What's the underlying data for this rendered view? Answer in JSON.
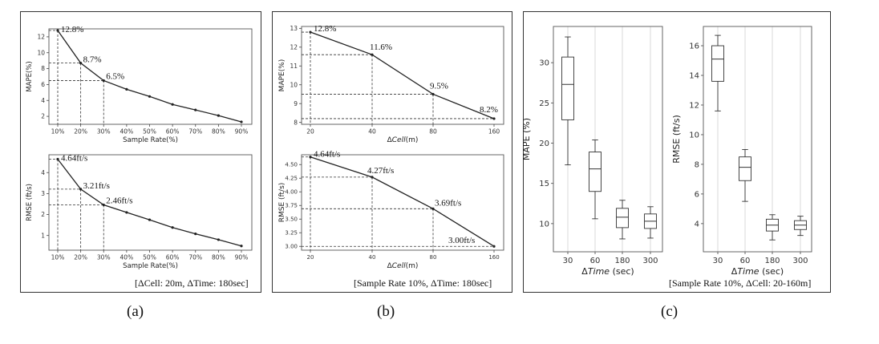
{
  "panels": [
    {
      "label": "(a)",
      "caption": "[ΔCell: 20m, ΔTime: 180sec]"
    },
    {
      "label": "(b)",
      "caption": "[Sample Rate 10%, ΔTime: 180sec]"
    },
    {
      "label": "(c)",
      "caption": "[Sample Rate 10%, ΔCell: 20-160m]"
    }
  ],
  "chart_data": [
    {
      "id": "a-top",
      "type": "line",
      "categories": [
        "10%",
        "20%",
        "30%",
        "40%",
        "50%",
        "60%",
        "70%",
        "80%",
        "90%"
      ],
      "values": [
        12.8,
        8.7,
        6.5,
        5.4,
        4.5,
        3.5,
        2.8,
        2.1,
        1.3
      ],
      "ylabel": "MAPE(%)",
      "xlabel": "Sample Rate(%)",
      "ylim": [
        1,
        13
      ],
      "yticks": [
        2,
        4,
        6,
        8,
        10,
        12
      ],
      "annotations": [
        {
          "index": 0,
          "text": "12.8%"
        },
        {
          "index": 1,
          "text": "8.7%"
        },
        {
          "index": 2,
          "text": "6.5%"
        }
      ]
    },
    {
      "id": "a-bottom",
      "type": "line",
      "categories": [
        "10%",
        "20%",
        "30%",
        "40%",
        "50%",
        "60%",
        "70%",
        "80%",
        "90%"
      ],
      "values": [
        4.64,
        3.21,
        2.46,
        2.1,
        1.75,
        1.38,
        1.08,
        0.8,
        0.5
      ],
      "ylabel": "RMSE (ft/s)",
      "xlabel": "Sample Rate(%)",
      "ylim": [
        0.3,
        4.85
      ],
      "yticks": [
        1,
        2,
        3,
        4
      ],
      "annotations": [
        {
          "index": 0,
          "text": "4.64ft/s"
        },
        {
          "index": 1,
          "text": "3.21ft/s"
        },
        {
          "index": 2,
          "text": "2.46ft/s"
        }
      ]
    },
    {
      "id": "b-top",
      "type": "line",
      "categories": [
        "20",
        "40",
        "80",
        "160"
      ],
      "values": [
        12.8,
        11.6,
        9.5,
        8.2
      ],
      "ylabel": "MAPE(%)",
      "xlabel": "ΔCell(m)",
      "ylim": [
        7.9,
        13.1
      ],
      "yticks": [
        8,
        9,
        10,
        11,
        12,
        13
      ],
      "annotations": [
        {
          "index": 0,
          "text": "12.8%"
        },
        {
          "index": 1,
          "text": "11.6%"
        },
        {
          "index": 2,
          "text": "9.5%"
        },
        {
          "index": 3,
          "text": "8.2%"
        }
      ]
    },
    {
      "id": "b-bottom",
      "type": "line",
      "categories": [
        "20",
        "40",
        "80",
        "160"
      ],
      "values": [
        4.64,
        4.27,
        3.69,
        3.0
      ],
      "ylabel": "RMSE (ft/s)",
      "xlabel": "ΔCell(m)",
      "ylim": [
        2.93,
        4.68
      ],
      "yticks": [
        3.0,
        3.25,
        3.5,
        3.75,
        4.0,
        4.25,
        4.5
      ],
      "ytick_labels": [
        "3.00",
        "3.25",
        "3.50",
        "3.75",
        "4.00",
        "4.25",
        "4.50"
      ],
      "annotations": [
        {
          "index": 0,
          "text": "4.64ft/s"
        },
        {
          "index": 1,
          "text": "4.27ft/s"
        },
        {
          "index": 2,
          "text": "3.69ft/s"
        },
        {
          "index": 3,
          "text": "3.00ft/s"
        }
      ]
    },
    {
      "id": "c-left",
      "type": "box",
      "categories": [
        "30",
        "60",
        "180",
        "300"
      ],
      "boxes": [
        {
          "whislo": 17.3,
          "q1": 22.9,
          "med": 27.3,
          "q3": 30.7,
          "whishi": 33.2
        },
        {
          "whislo": 10.6,
          "q1": 14.0,
          "med": 16.8,
          "q3": 18.9,
          "whishi": 20.4
        },
        {
          "whislo": 8.1,
          "q1": 9.5,
          "med": 10.8,
          "q3": 11.9,
          "whishi": 12.9
        },
        {
          "whislo": 8.2,
          "q1": 9.4,
          "med": 10.3,
          "q3": 11.2,
          "whishi": 12.1
        }
      ],
      "ylabel": "MAPE (%)",
      "xlabel": "ΔTime (sec)",
      "ylim": [
        6.5,
        34.5
      ],
      "yticks": [
        10,
        15,
        20,
        25,
        30
      ]
    },
    {
      "id": "c-right",
      "type": "box",
      "categories": [
        "30",
        "60",
        "180",
        "300"
      ],
      "boxes": [
        {
          "whislo": 11.6,
          "q1": 13.6,
          "med": 15.1,
          "q3": 16.0,
          "whishi": 16.7
        },
        {
          "whislo": 5.5,
          "q1": 6.9,
          "med": 7.8,
          "q3": 8.5,
          "whishi": 9.0
        },
        {
          "whislo": 2.9,
          "q1": 3.5,
          "med": 3.9,
          "q3": 4.3,
          "whishi": 4.6
        },
        {
          "whislo": 3.2,
          "q1": 3.6,
          "med": 3.9,
          "q3": 4.2,
          "whishi": 4.5
        }
      ],
      "ylabel": "RMSE (ft/s)",
      "xlabel": "ΔTime (sec)",
      "ylim": [
        2.1,
        17.3
      ],
      "yticks": [
        4,
        6,
        8,
        10,
        12,
        14,
        16
      ]
    }
  ]
}
